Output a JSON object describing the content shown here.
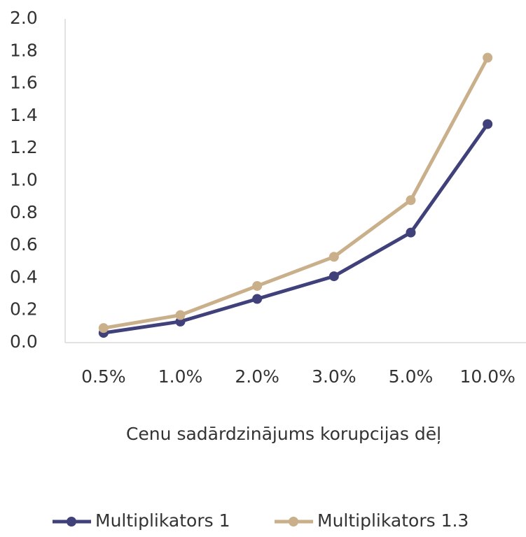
{
  "chart_data": {
    "type": "line",
    "x_label": "Cenu sadārdzinājums korupcijas dēļ",
    "categories": [
      "0.5%",
      "1.0%",
      "2.0%",
      "3.0%",
      "5.0%",
      "10.0%"
    ],
    "series": [
      {
        "name": "Multiplikators 1",
        "color": "#40407a",
        "values": [
          0.06,
          0.13,
          0.27,
          0.41,
          0.68,
          1.35
        ]
      },
      {
        "name": "Multiplikators 1.3",
        "color": "#c9b08b",
        "values": [
          0.09,
          0.17,
          0.35,
          0.53,
          0.88,
          1.76
        ]
      }
    ],
    "ylim": [
      0,
      2
    ],
    "yticks": [
      {
        "value": 0,
        "label": "0.0"
      },
      0.2,
      0.4,
      0.6,
      0.8,
      {
        "value": 1,
        "label": "1.0"
      },
      1.2,
      1.4,
      1.6,
      1.8,
      {
        "value": 2,
        "label": "2.0"
      }
    ],
    "grid": false,
    "legend": "bottom"
  }
}
